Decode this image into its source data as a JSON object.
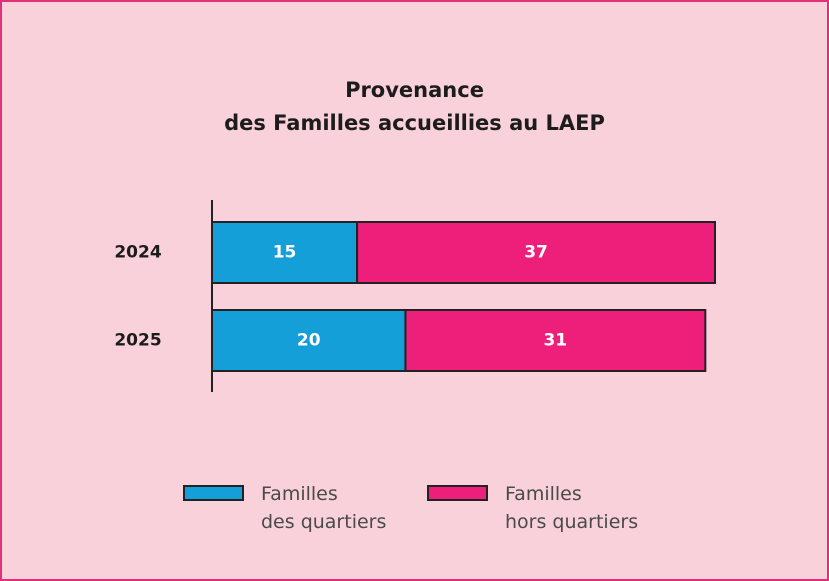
{
  "chart_data": {
    "type": "stacked-bar-horizontal",
    "title": "Provenance\ndes Familles accueillies au LAEP",
    "categories": [
      "2024",
      "2025"
    ],
    "series": [
      {
        "name": "Familles\ndes quartiers",
        "color": "#149fd8",
        "values": [
          15,
          20
        ]
      },
      {
        "name": "Familles\nhors quartiers",
        "color": "#ee1f7a",
        "values": [
          37,
          31
        ]
      }
    ],
    "legend": "bottom"
  }
}
